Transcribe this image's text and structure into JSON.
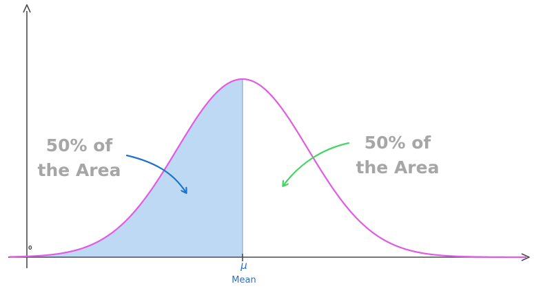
{
  "annotations": {
    "left": {
      "line1": "50% of",
      "line2": "the Area"
    },
    "right": {
      "line1": "50% of",
      "line2": "the Area"
    }
  },
  "axis": {
    "origin_label": "0",
    "mean_symbol": "μ",
    "mean_label": "Mean"
  },
  "colors": {
    "curve": "#e05ae6",
    "fill": "#bdd9f4",
    "axes": "#4a4a4a",
    "annotation_text": "#a6a6a6",
    "left_arrow": "#1c73cc",
    "right_arrow": "#43d463",
    "mean_text": "#2a6fc6"
  },
  "chart_data": {
    "type": "area",
    "distribution": "normal",
    "shaded_region": "left of mean",
    "shaded_fraction": 0.5,
    "unshaded_fraction": 0.5
  }
}
